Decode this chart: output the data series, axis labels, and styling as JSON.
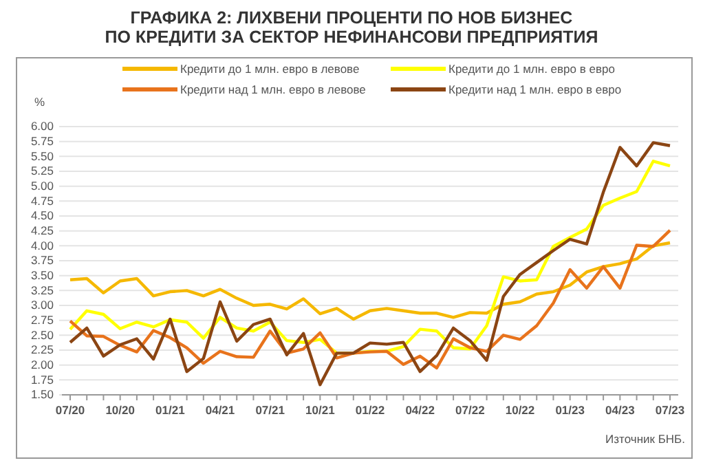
{
  "chart_data": {
    "type": "line",
    "title": "ГРАФИКА 2: ЛИХВЕНИ ПРОЦЕНТИ ПО НОВ БИЗНЕС\nПО КРЕДИТИ ЗА СЕКТОР НЕФИНАНСОВИ ПРЕДПРИЯТИЯ",
    "ylabel": "%",
    "annotations": [
      "Източник БНБ."
    ],
    "categories": [
      "07/20",
      null,
      null,
      "10/20",
      null,
      null,
      "01/21",
      null,
      null,
      "04/21",
      null,
      null,
      "07/21",
      null,
      null,
      "10/21",
      null,
      null,
      "01/22",
      null,
      null,
      "04/22",
      null,
      null,
      "07/22",
      null,
      null,
      "10/22",
      null,
      null,
      "01/23",
      null,
      null,
      "04/23",
      null,
      null,
      "07/23"
    ],
    "series": [
      {
        "name": "Кредити до 1 млн. евро в левове",
        "color": "#f5b800",
        "values": [
          3.43,
          3.45,
          3.21,
          3.41,
          3.45,
          3.16,
          3.23,
          3.25,
          3.16,
          3.27,
          3.12,
          3.0,
          3.02,
          2.94,
          3.11,
          2.86,
          2.95,
          2.77,
          2.91,
          2.95,
          2.91,
          2.87,
          2.87,
          2.8,
          2.88,
          2.87,
          3.02,
          3.06,
          3.19,
          3.23,
          3.34,
          3.56,
          3.65,
          3.7,
          3.78,
          4.0,
          4.05
        ]
      },
      {
        "name": "Кредити до 1 млн. евро в евро",
        "color": "#ffff00",
        "values": [
          2.6,
          2.91,
          2.85,
          2.61,
          2.72,
          2.64,
          2.76,
          2.72,
          2.45,
          2.8,
          2.62,
          2.57,
          2.72,
          2.41,
          2.38,
          2.43,
          2.2,
          2.2,
          2.23,
          2.23,
          2.31,
          2.6,
          2.57,
          2.29,
          2.27,
          2.66,
          3.48,
          3.41,
          3.43,
          3.99,
          4.14,
          4.28,
          4.68,
          4.8,
          4.91,
          5.42,
          5.34
        ]
      },
      {
        "name": "Кредити над 1 млн. евро в левове",
        "color": "#e8731c",
        "values": [
          2.74,
          2.49,
          2.48,
          2.33,
          2.22,
          2.58,
          2.46,
          2.29,
          2.03,
          2.23,
          2.14,
          2.13,
          2.57,
          2.2,
          2.27,
          2.54,
          2.12,
          2.2,
          2.22,
          2.23,
          2.01,
          2.15,
          1.95,
          2.44,
          2.29,
          2.23,
          2.5,
          2.43,
          2.66,
          3.04,
          3.6,
          3.29,
          3.65,
          3.29,
          4.01,
          3.99,
          4.26
        ]
      },
      {
        "name": "Кредити над 1 млн. евро в евро",
        "color": "#8b4513",
        "values": [
          2.38,
          2.62,
          2.15,
          2.34,
          2.44,
          2.1,
          2.77,
          1.89,
          2.11,
          3.06,
          2.4,
          2.68,
          2.77,
          2.17,
          2.53,
          1.67,
          2.2,
          2.2,
          2.37,
          2.35,
          2.38,
          1.89,
          2.16,
          2.62,
          2.41,
          2.08,
          3.15,
          3.52,
          3.72,
          3.92,
          4.11,
          4.03,
          4.9,
          5.65,
          5.34,
          5.73,
          5.68
        ]
      }
    ],
    "ylim": [
      1.5,
      6.0
    ],
    "yticks": [
      {
        "value": 1.5,
        "label": "1.50"
      },
      {
        "value": 1.75,
        "label": "1.75"
      },
      {
        "value": 2.0,
        "label": "2.00"
      },
      {
        "value": 2.25,
        "label": "2.25"
      },
      {
        "value": 2.5,
        "label": "2.50"
      },
      {
        "value": 2.75,
        "label": "2.75"
      },
      {
        "value": 3.0,
        "label": "3.00"
      },
      {
        "value": 3.25,
        "label": "3.25"
      },
      {
        "value": 3.5,
        "label": "3.50"
      },
      {
        "value": 3.75,
        "label": "3.75"
      },
      {
        "value": 4.0,
        "label": "4.00"
      },
      {
        "value": 4.25,
        "label": "4.25"
      },
      {
        "value": 4.5,
        "label": "4.50"
      },
      {
        "value": 4.75,
        "label": "4.75"
      },
      {
        "value": 5.0,
        "label": "5.00"
      },
      {
        "value": 5.25,
        "label": "5.25"
      },
      {
        "value": 5.5,
        "label": "5.50"
      },
      {
        "value": 5.75,
        "label": "5.75"
      },
      {
        "value": 6.0,
        "label": "6.00"
      }
    ],
    "grid": "y",
    "legend": "top",
    "marker": "none",
    "line_style": "solid"
  }
}
